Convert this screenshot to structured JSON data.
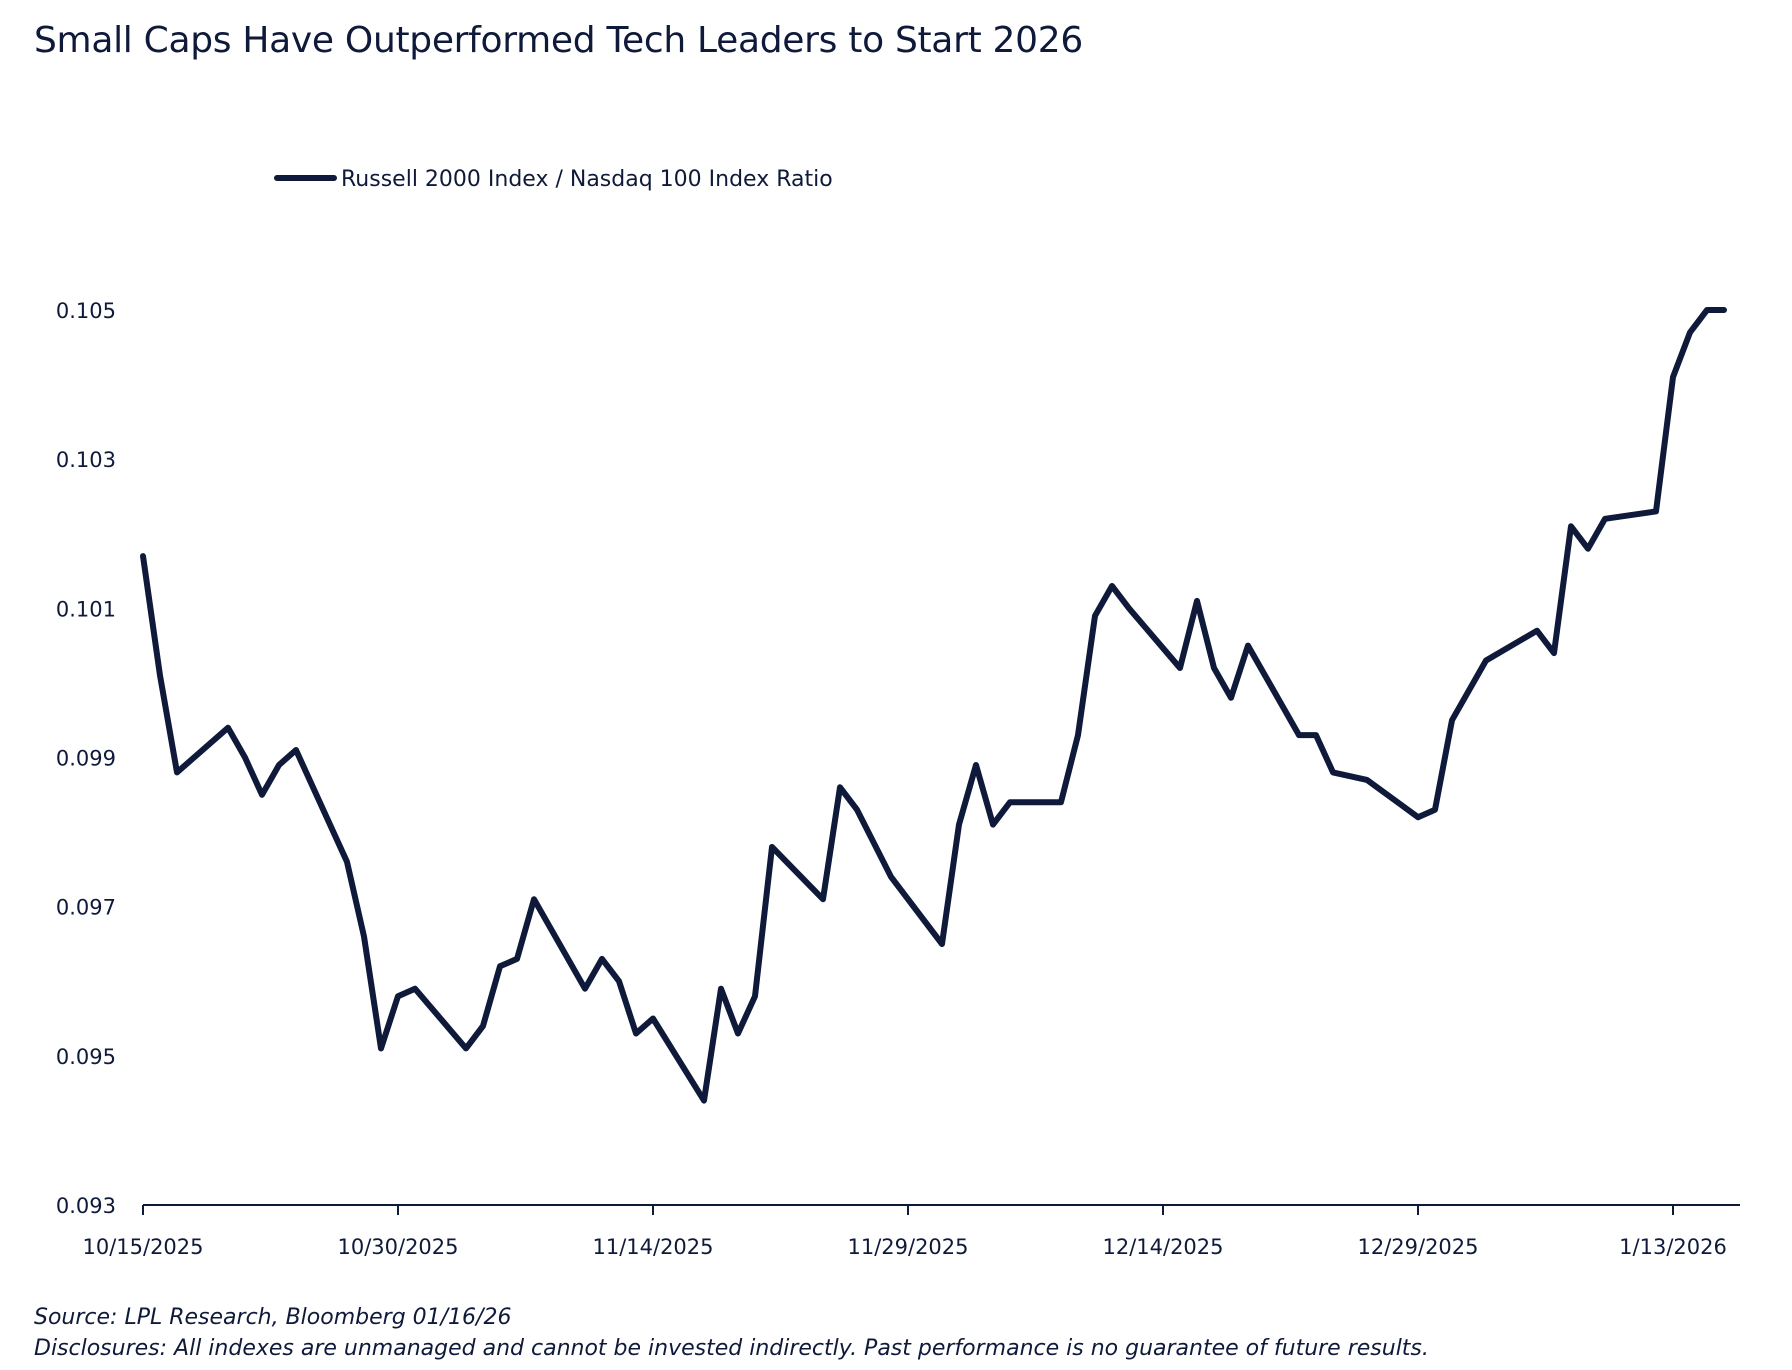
{
  "chart_data": {
    "type": "line",
    "title": "Small Caps Have Outperformed Tech Leaders to Start 2026",
    "xlabel": "",
    "ylabel": "",
    "xlim": [
      "10/15/2025",
      "1/16/2026"
    ],
    "ylim": [
      0.093,
      0.105
    ],
    "y_ticks": [
      0.093,
      0.095,
      0.097,
      0.099,
      0.101,
      0.103,
      0.105
    ],
    "y_tick_labels": [
      "0.093",
      "0.095",
      "0.097",
      "0.099",
      "0.101",
      "0.103",
      "0.105"
    ],
    "x_ticks": [
      "10/15/2025",
      "10/30/2025",
      "11/14/2025",
      "11/29/2025",
      "12/14/2025",
      "12/29/2025",
      "1/13/2026"
    ],
    "grid": false,
    "legend_position": "top-left",
    "series_color": "#0f1a3a",
    "series": [
      {
        "name": "Russell 2000 Index / Nasdaq 100 Index Ratio",
        "x": [
          "10/15/2025",
          "10/16/2025",
          "10/17/2025",
          "10/20/2025",
          "10/21/2025",
          "10/22/2025",
          "10/23/2025",
          "10/24/2025",
          "10/27/2025",
          "10/28/2025",
          "10/29/2025",
          "10/30/2025",
          "10/31/2025",
          "11/3/2025",
          "11/4/2025",
          "11/5/2025",
          "11/6/2025",
          "11/7/2025",
          "11/10/2025",
          "11/11/2025",
          "11/12/2025",
          "11/13/2025",
          "11/14/2025",
          "11/17/2025",
          "11/18/2025",
          "11/19/2025",
          "11/20/2025",
          "11/21/2025",
          "11/24/2025",
          "11/25/2025",
          "11/26/2025",
          "11/28/2025",
          "12/1/2025",
          "12/2/2025",
          "12/3/2025",
          "12/4/2025",
          "12/5/2025",
          "12/8/2025",
          "12/9/2025",
          "12/10/2025",
          "12/11/2025",
          "12/12/2025",
          "12/15/2025",
          "12/16/2025",
          "12/17/2025",
          "12/18/2025",
          "12/19/2025",
          "12/22/2025",
          "12/23/2025",
          "12/24/2025",
          "12/26/2025",
          "12/29/2025",
          "12/30/2025",
          "12/31/2025",
          "1/2/2026",
          "1/5/2026",
          "1/6/2026",
          "1/7/2026",
          "1/8/2026",
          "1/9/2026",
          "1/12/2026",
          "1/13/2026",
          "1/14/2026",
          "1/15/2026",
          "1/16/2026"
        ],
        "values": [
          0.1017,
          0.1001,
          0.0988,
          0.0994,
          0.099,
          0.0985,
          0.0989,
          0.0991,
          0.0976,
          0.0966,
          0.0951,
          0.0958,
          0.0959,
          0.0951,
          0.0954,
          0.0962,
          0.0963,
          0.0971,
          0.0959,
          0.0963,
          0.096,
          0.0953,
          0.0955,
          0.0944,
          0.0959,
          0.0953,
          0.0958,
          0.0978,
          0.0971,
          0.0986,
          0.0983,
          0.0974,
          0.0965,
          0.0981,
          0.0989,
          0.0981,
          0.0984,
          0.0984,
          0.0993,
          0.1009,
          0.1013,
          0.101,
          0.1002,
          0.1011,
          0.1002,
          0.0998,
          0.1005,
          0.0993,
          0.0993,
          0.0988,
          0.0987,
          0.0982,
          0.0983,
          0.0995,
          0.1003,
          0.1007,
          0.1004,
          0.1021,
          0.1018,
          0.1022,
          0.1023,
          0.1041,
          0.1047,
          0.105,
          0.105
        ]
      }
    ],
    "source": "Source: LPL Research, Bloomberg 01/16/26",
    "disclosure": "Disclosures: All indexes are unmanaged and cannot be invested indirectly. Past performance is no guarantee of future results."
  }
}
